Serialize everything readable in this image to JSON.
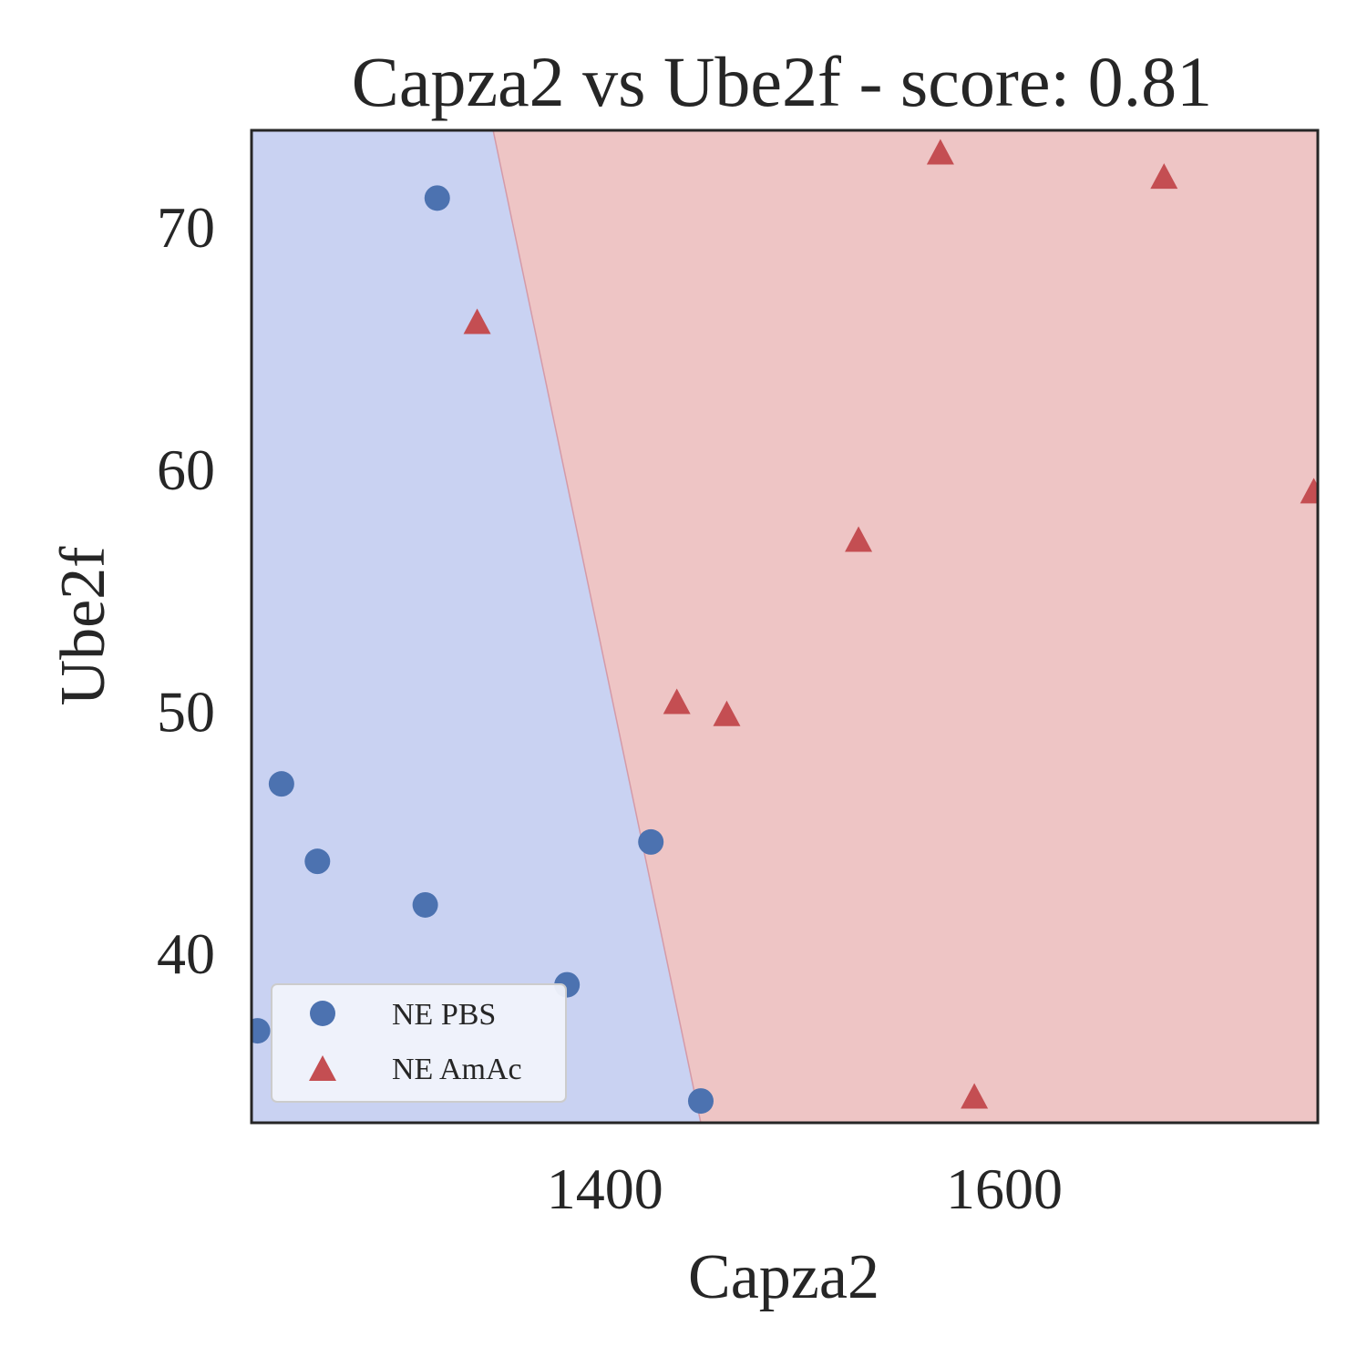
{
  "chart_data": {
    "type": "scatter",
    "title": "Capza2 vs Ube2f - score: 0.81",
    "xlabel": "Capza2",
    "ylabel": "Ube2f",
    "xlim": [
      1223,
      1757
    ],
    "ylim": [
      33,
      74
    ],
    "xticks": [
      1400,
      1600
    ],
    "yticks": [
      40,
      50,
      60,
      70
    ],
    "grid": false,
    "decision_regions": {
      "boundary": [
        [
          1344,
          74
        ],
        [
          1448,
          33
        ]
      ],
      "left_class": "NE PBS",
      "right_class": "NE AmAc",
      "left_color": "#c9d2f2",
      "right_color": "#eec5c5",
      "boundary_color": "#d49aa8"
    },
    "legend": {
      "position": "lower-left",
      "entries": [
        "NE PBS",
        "NE AmAc"
      ]
    },
    "series": [
      {
        "name": "NE PBS",
        "marker": "circle",
        "color": "#4c72b0",
        "points": [
          {
            "x": 1316,
            "y": 71.2
          },
          {
            "x": 1238,
            "y": 47.0
          },
          {
            "x": 1256,
            "y": 43.8
          },
          {
            "x": 1310,
            "y": 42.0
          },
          {
            "x": 1423,
            "y": 44.6
          },
          {
            "x": 1381,
            "y": 38.7
          },
          {
            "x": 1226,
            "y": 36.8
          },
          {
            "x": 1448,
            "y": 33.9
          }
        ]
      },
      {
        "name": "NE AmAc",
        "marker": "triangle",
        "color": "#c44e52",
        "points": [
          {
            "x": 1336,
            "y": 66.0
          },
          {
            "x": 1568,
            "y": 73.0
          },
          {
            "x": 1680,
            "y": 72.0
          },
          {
            "x": 1527,
            "y": 57.0
          },
          {
            "x": 1755,
            "y": 59.0
          },
          {
            "x": 1436,
            "y": 50.3
          },
          {
            "x": 1461,
            "y": 49.8
          },
          {
            "x": 1585,
            "y": 34.0
          }
        ]
      }
    ]
  }
}
